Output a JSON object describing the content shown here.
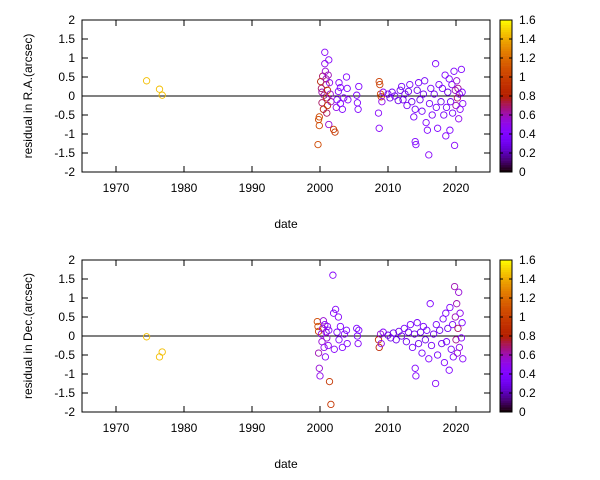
{
  "chart_data": [
    {
      "type": "scatter",
      "title": "",
      "xlabel": "date",
      "ylabel": "residual in R.A.(arcsec)",
      "xlim": [
        1965,
        2025
      ],
      "ylim": [
        -2,
        2
      ],
      "xticks": [
        "1970",
        "1980",
        "1990",
        "2000",
        "2010",
        "2020"
      ],
      "yticks": [
        "-2",
        "-1.5",
        "-1",
        "-0.5",
        "0",
        "0.5",
        "1",
        "1.5",
        "2"
      ],
      "zero_line": true,
      "colorbar": {
        "range": [
          0,
          1.6
        ],
        "ticks": [
          "0",
          "0.2",
          "0.4",
          "0.6",
          "0.8",
          "1",
          "1.2",
          "1.4",
          "1.6"
        ],
        "palette": "black-purple-red-orange-yellow"
      },
      "grid": false,
      "points": [
        [
          1974.5,
          0.4,
          1.45
        ],
        [
          1976.4,
          0.18,
          1.45
        ],
        [
          1976.8,
          0.02,
          1.45
        ],
        [
          1999.7,
          -1.28,
          1.05
        ],
        [
          1999.8,
          -0.62,
          1.05
        ],
        [
          1999.9,
          -0.78,
          1.05
        ],
        [
          1999.9,
          -0.55,
          1.05
        ],
        [
          2000.1,
          0.38,
          0.8
        ],
        [
          2000.2,
          0.2,
          0.7
        ],
        [
          2000.3,
          0.1,
          0.6
        ],
        [
          2000.3,
          -0.18,
          0.7
        ],
        [
          2000.4,
          0.52,
          0.7
        ],
        [
          2000.5,
          -0.35,
          0.8
        ],
        [
          2000.6,
          0.02,
          0.65
        ],
        [
          2000.7,
          1.15,
          0.45
        ],
        [
          2000.7,
          0.85,
          0.5
        ],
        [
          2000.8,
          0.65,
          0.55
        ],
        [
          2000.9,
          0.45,
          0.6
        ],
        [
          2000.9,
          0.3,
          0.7
        ],
        [
          2001.0,
          -0.05,
          0.85
        ],
        [
          2001.0,
          -0.45,
          0.7
        ],
        [
          2001.1,
          0.15,
          0.9
        ],
        [
          2001.1,
          -0.25,
          0.9
        ],
        [
          2001.2,
          0.55,
          0.6
        ],
        [
          2001.3,
          0.95,
          0.45
        ],
        [
          2001.3,
          -0.75,
          0.55
        ],
        [
          2001.4,
          0.35,
          0.5
        ],
        [
          2001.5,
          0.05,
          0.55
        ],
        [
          2001.6,
          -0.15,
          0.6
        ],
        [
          2002.0,
          -0.88,
          1.0
        ],
        [
          2002.2,
          -0.95,
          0.95
        ],
        [
          2002.4,
          -0.3,
          0.5
        ],
        [
          2002.5,
          -0.1,
          0.4
        ],
        [
          2002.7,
          0.12,
          0.4
        ],
        [
          2002.8,
          0.35,
          0.45
        ],
        [
          2003.0,
          0.22,
          0.4
        ],
        [
          2003.0,
          -0.2,
          0.4
        ],
        [
          2003.3,
          -0.35,
          0.4
        ],
        [
          2003.5,
          -0.05,
          0.45
        ],
        [
          2003.9,
          0.5,
          0.4
        ],
        [
          2004.0,
          0.2,
          0.4
        ],
        [
          2004.1,
          -0.1,
          0.45
        ],
        [
          2005.4,
          0.02,
          0.4
        ],
        [
          2005.5,
          -0.18,
          0.4
        ],
        [
          2005.6,
          -0.35,
          0.4
        ],
        [
          2005.7,
          0.25,
          0.4
        ],
        [
          2008.7,
          0.38,
          1.0
        ],
        [
          2008.8,
          0.3,
          1.0
        ],
        [
          2008.9,
          0.05,
          1.0
        ],
        [
          2009.0,
          -0.02,
          0.95
        ],
        [
          2008.6,
          -0.45,
          0.45
        ],
        [
          2008.7,
          -0.85,
          0.45
        ],
        [
          2009.1,
          -0.15,
          0.5
        ],
        [
          2009.3,
          0.1,
          0.5
        ],
        [
          2010.0,
          0.05,
          0.3
        ],
        [
          2010.3,
          -0.05,
          0.3
        ],
        [
          2010.6,
          0.1,
          0.35
        ],
        [
          2011.0,
          0.0,
          0.3
        ],
        [
          2011.5,
          -0.12,
          0.3
        ],
        [
          2011.8,
          0.15,
          0.3
        ],
        [
          2012.0,
          0.25,
          0.35
        ],
        [
          2012.2,
          -0.1,
          0.3
        ],
        [
          2012.5,
          0.05,
          0.3
        ],
        [
          2012.8,
          -0.25,
          0.35
        ],
        [
          2013.0,
          0.12,
          0.3
        ],
        [
          2013.2,
          0.3,
          0.35
        ],
        [
          2013.5,
          -0.15,
          0.3
        ],
        [
          2013.8,
          -0.55,
          0.35
        ],
        [
          2014.0,
          -0.35,
          0.35
        ],
        [
          2014.0,
          -1.2,
          0.4
        ],
        [
          2014.1,
          -1.28,
          0.4
        ],
        [
          2014.3,
          0.15,
          0.3
        ],
        [
          2014.5,
          0.35,
          0.35
        ],
        [
          2014.7,
          -0.1,
          0.3
        ],
        [
          2015.0,
          -0.4,
          0.35
        ],
        [
          2015.2,
          0.05,
          0.3
        ],
        [
          2015.4,
          0.4,
          0.35
        ],
        [
          2015.6,
          -0.7,
          0.4
        ],
        [
          2015.8,
          -0.9,
          0.4
        ],
        [
          2016.0,
          -1.55,
          0.45
        ],
        [
          2016.1,
          -0.2,
          0.35
        ],
        [
          2016.3,
          0.2,
          0.35
        ],
        [
          2016.5,
          -0.5,
          0.35
        ],
        [
          2016.8,
          0.05,
          0.3
        ],
        [
          2017.0,
          0.85,
          0.4
        ],
        [
          2017.1,
          -0.3,
          0.35
        ],
        [
          2017.3,
          -0.85,
          0.4
        ],
        [
          2017.5,
          0.3,
          0.35
        ],
        [
          2017.8,
          -0.15,
          0.3
        ],
        [
          2018.0,
          0.2,
          0.35
        ],
        [
          2018.2,
          -0.5,
          0.35
        ],
        [
          2018.4,
          0.55,
          0.4
        ],
        [
          2018.5,
          -1.05,
          0.4
        ],
        [
          2018.6,
          -0.3,
          0.35
        ],
        [
          2018.8,
          0.1,
          0.3
        ],
        [
          2019.0,
          0.45,
          0.4
        ],
        [
          2019.1,
          -0.9,
          0.4
        ],
        [
          2019.2,
          -0.15,
          0.35
        ],
        [
          2019.4,
          0.3,
          0.35
        ],
        [
          2019.5,
          -0.45,
          0.35
        ],
        [
          2019.7,
          0.65,
          0.4
        ],
        [
          2019.8,
          -1.3,
          0.45
        ],
        [
          2019.9,
          0.15,
          0.6
        ],
        [
          2020.0,
          -0.25,
          0.6
        ],
        [
          2020.1,
          0.4,
          0.55
        ],
        [
          2020.2,
          -0.05,
          0.7
        ],
        [
          2020.3,
          0.2,
          0.65
        ],
        [
          2020.4,
          -0.6,
          0.5
        ],
        [
          2020.5,
          0.05,
          0.5
        ],
        [
          2020.6,
          -0.35,
          0.45
        ],
        [
          2020.8,
          0.7,
          0.4
        ],
        [
          2020.9,
          0.1,
          0.4
        ],
        [
          2021.0,
          -0.2,
          0.45
        ]
      ]
    },
    {
      "type": "scatter",
      "title": "",
      "xlabel": "date",
      "ylabel": "residual in Dec.(arcsec)",
      "xlim": [
        1965,
        2025
      ],
      "ylim": [
        -2,
        2
      ],
      "xticks": [
        "1970",
        "1980",
        "1990",
        "2000",
        "2010",
        "2020"
      ],
      "yticks": [
        "-2",
        "-1.5",
        "-1",
        "-0.5",
        "0",
        "0.5",
        "1",
        "1.5",
        "2"
      ],
      "zero_line": true,
      "colorbar": {
        "range": [
          0,
          1.6
        ],
        "ticks": [
          "0",
          "0.2",
          "0.4",
          "0.6",
          "0.8",
          "1",
          "1.2",
          "1.4",
          "1.6"
        ],
        "palette": "black-purple-red-orange-yellow"
      },
      "grid": false,
      "points": [
        [
          1974.5,
          -0.02,
          1.45
        ],
        [
          1976.4,
          -0.55,
          1.45
        ],
        [
          1976.8,
          -0.42,
          1.45
        ],
        [
          1999.6,
          0.38,
          1.05
        ],
        [
          1999.7,
          0.25,
          1.05
        ],
        [
          1999.8,
          0.12,
          1.0
        ],
        [
          1999.8,
          -0.45,
          0.6
        ],
        [
          1999.9,
          -0.85,
          0.55
        ],
        [
          2000.0,
          -1.05,
          0.5
        ],
        [
          2000.2,
          0.05,
          0.5
        ],
        [
          2000.3,
          -0.15,
          0.55
        ],
        [
          2000.4,
          0.2,
          0.6
        ],
        [
          2000.5,
          0.4,
          0.55
        ],
        [
          2000.6,
          -0.3,
          0.5
        ],
        [
          2000.7,
          0.3,
          0.45
        ],
        [
          2000.8,
          -0.55,
          0.45
        ],
        [
          2000.9,
          0.1,
          0.5
        ],
        [
          2001.0,
          -0.05,
          0.55
        ],
        [
          2001.1,
          0.25,
          0.5
        ],
        [
          2001.2,
          -0.25,
          0.5
        ],
        [
          2001.3,
          0.15,
          0.45
        ],
        [
          2001.4,
          -1.2,
          0.95
        ],
        [
          2001.6,
          -1.8,
          0.95
        ],
        [
          2001.9,
          1.6,
          0.45
        ],
        [
          2002.0,
          0.6,
          0.45
        ],
        [
          2002.1,
          -0.35,
          0.45
        ],
        [
          2002.3,
          0.7,
          0.45
        ],
        [
          2002.5,
          0.1,
          0.4
        ],
        [
          2002.7,
          0.5,
          0.45
        ],
        [
          2002.8,
          -0.1,
          0.4
        ],
        [
          2003.0,
          0.25,
          0.4
        ],
        [
          2003.3,
          -0.3,
          0.4
        ],
        [
          2003.6,
          0.05,
          0.45
        ],
        [
          2003.9,
          0.15,
          0.4
        ],
        [
          2004.0,
          -0.2,
          0.4
        ],
        [
          2005.4,
          0.2,
          0.4
        ],
        [
          2005.5,
          0.0,
          0.4
        ],
        [
          2005.6,
          -0.2,
          0.45
        ],
        [
          2005.7,
          0.15,
          0.4
        ],
        [
          2008.6,
          -0.1,
          0.9
        ],
        [
          2008.7,
          -0.3,
          0.85
        ],
        [
          2008.9,
          0.05,
          0.55
        ],
        [
          2009.0,
          -0.2,
          0.5
        ],
        [
          2009.3,
          0.1,
          0.45
        ],
        [
          2010.0,
          0.02,
          0.3
        ],
        [
          2010.4,
          -0.05,
          0.3
        ],
        [
          2010.8,
          0.08,
          0.3
        ],
        [
          2011.2,
          -0.1,
          0.3
        ],
        [
          2011.6,
          0.12,
          0.3
        ],
        [
          2012.0,
          0.0,
          0.3
        ],
        [
          2012.4,
          0.2,
          0.35
        ],
        [
          2012.7,
          -0.15,
          0.3
        ],
        [
          2013.0,
          0.1,
          0.3
        ],
        [
          2013.3,
          0.3,
          0.35
        ],
        [
          2013.6,
          -0.3,
          0.35
        ],
        [
          2013.9,
          0.05,
          0.3
        ],
        [
          2014.0,
          -0.85,
          0.4
        ],
        [
          2014.1,
          -1.05,
          0.4
        ],
        [
          2014.3,
          0.35,
          0.35
        ],
        [
          2014.5,
          -0.2,
          0.3
        ],
        [
          2014.8,
          0.1,
          0.3
        ],
        [
          2015.0,
          -0.45,
          0.35
        ],
        [
          2015.2,
          0.25,
          0.35
        ],
        [
          2015.5,
          -0.1,
          0.3
        ],
        [
          2015.7,
          0.15,
          0.35
        ],
        [
          2016.0,
          -0.6,
          0.4
        ],
        [
          2016.2,
          0.85,
          0.4
        ],
        [
          2016.4,
          -0.25,
          0.35
        ],
        [
          2016.7,
          0.05,
          0.3
        ],
        [
          2017.0,
          -1.25,
          0.45
        ],
        [
          2017.1,
          0.3,
          0.35
        ],
        [
          2017.3,
          -0.5,
          0.35
        ],
        [
          2017.6,
          0.15,
          0.3
        ],
        [
          2017.9,
          -0.2,
          0.3
        ],
        [
          2018.1,
          0.45,
          0.35
        ],
        [
          2018.3,
          -0.7,
          0.4
        ],
        [
          2018.5,
          0.6,
          0.4
        ],
        [
          2018.6,
          -0.15,
          0.35
        ],
        [
          2018.8,
          0.2,
          0.3
        ],
        [
          2019.0,
          -0.9,
          0.4
        ],
        [
          2019.1,
          0.75,
          0.4
        ],
        [
          2019.3,
          -0.35,
          0.35
        ],
        [
          2019.5,
          0.3,
          0.35
        ],
        [
          2019.6,
          -0.55,
          0.4
        ],
        [
          2019.8,
          1.3,
          0.6
        ],
        [
          2019.9,
          0.5,
          0.6
        ],
        [
          2020.0,
          -0.1,
          0.65
        ],
        [
          2020.1,
          0.85,
          0.6
        ],
        [
          2020.2,
          -0.45,
          0.55
        ],
        [
          2020.3,
          0.2,
          0.7
        ],
        [
          2020.4,
          1.15,
          0.55
        ],
        [
          2020.5,
          -0.3,
          0.5
        ],
        [
          2020.6,
          0.6,
          0.5
        ],
        [
          2020.8,
          -0.05,
          0.45
        ],
        [
          2020.9,
          0.35,
          0.4
        ],
        [
          2021.0,
          -0.6,
          0.45
        ]
      ]
    }
  ]
}
